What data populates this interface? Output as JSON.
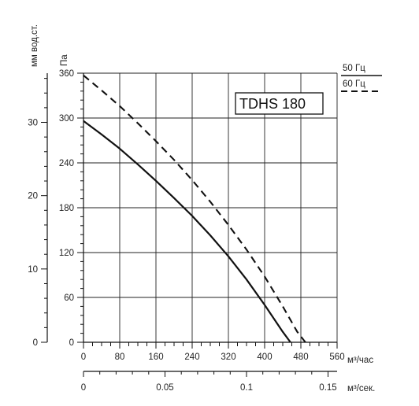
{
  "chart_data": {
    "type": "line",
    "title": "TDHS 180",
    "x_units": {
      "primary": {
        "label": "м³/час",
        "ticks": [
          0,
          80,
          160,
          240,
          320,
          400,
          480,
          560
        ],
        "range": [
          0,
          560
        ]
      },
      "secondary": {
        "label": "м³/сек.",
        "ticks": [
          "0",
          "0.05",
          "0.1",
          "0.15"
        ],
        "tick_values": [
          0,
          0.05,
          0.1,
          0.15
        ]
      }
    },
    "y_units": {
      "primary": {
        "label": "Па",
        "ticks": [
          0,
          60,
          120,
          180,
          240,
          300,
          360
        ],
        "range": [
          0,
          360
        ]
      },
      "secondary": {
        "label": "мм вод.ст.",
        "ticks": [
          0,
          10,
          20,
          30
        ]
      }
    },
    "grid": true,
    "legend_position": "top-right",
    "series": [
      {
        "name": "50 Гц",
        "style": "solid",
        "points": [
          [
            0,
            296
          ],
          [
            40,
            278
          ],
          [
            80,
            259
          ],
          [
            120,
            238
          ],
          [
            160,
            216
          ],
          [
            200,
            193
          ],
          [
            240,
            169
          ],
          [
            280,
            143
          ],
          [
            320,
            115
          ],
          [
            360,
            84
          ],
          [
            400,
            50
          ],
          [
            440,
            14
          ],
          [
            457,
            0
          ]
        ]
      },
      {
        "name": "60 Гц",
        "style": "dashed",
        "points": [
          [
            0,
            357
          ],
          [
            40,
            337
          ],
          [
            80,
            316
          ],
          [
            120,
            293
          ],
          [
            160,
            269
          ],
          [
            200,
            244
          ],
          [
            240,
            217
          ],
          [
            280,
            188
          ],
          [
            320,
            157
          ],
          [
            360,
            124
          ],
          [
            400,
            88
          ],
          [
            440,
            48
          ],
          [
            472,
            14
          ],
          [
            490,
            0
          ]
        ]
      }
    ]
  }
}
